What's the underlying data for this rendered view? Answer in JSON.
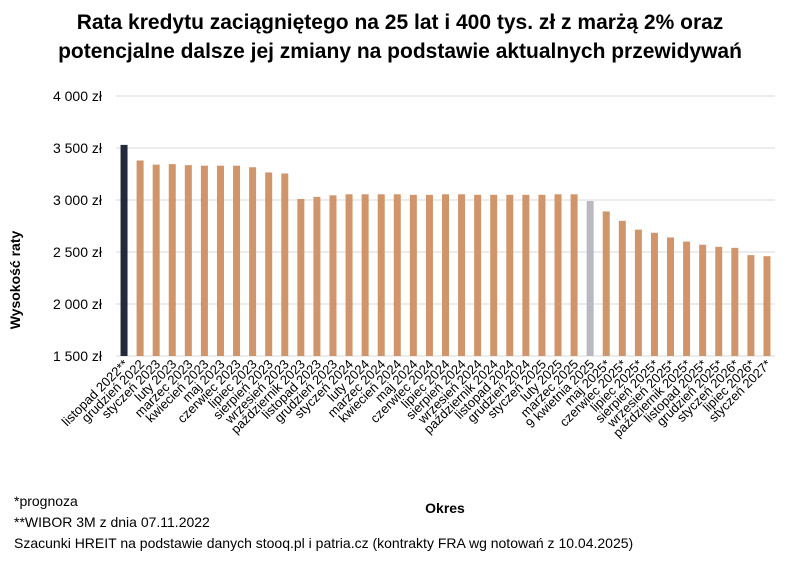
{
  "chart_data": {
    "type": "bar",
    "title_lines": [
      "Rata kredytu zaciągniętego na 25 lat i 400 tys. zł z marżą 2% oraz",
      "potencjalne dalsze jej zmiany na podstawie aktualnych przewidywań"
    ],
    "xlabel": "Okres",
    "ylabel": "Wysokość raty",
    "ylim": [
      1500,
      4000
    ],
    "yticks": [
      1500,
      2000,
      2500,
      3000,
      3500,
      4000
    ],
    "ytick_labels": [
      "1 500 zł",
      "2 000 zł",
      "2 500 zł",
      "3 000 zł",
      "3 500 zł",
      "4 000 zł"
    ],
    "grid": true,
    "legend": "none",
    "categories": [
      "listopad 2022**",
      "grudzień 2022",
      "styczeń 2023",
      "luty 2023",
      "marzec 2023",
      "kwiecień 2023",
      "maj 2023",
      "czerwiec 2023",
      "lipiec 2023",
      "sierpień 2023",
      "wrzesień 2023",
      "październik 2023",
      "listopad 2023",
      "grudzień 2023",
      "styczeń 2024",
      "luty 2024",
      "marzec 2024",
      "kwiecień 2024",
      "maj 2024",
      "czerwiec 2024",
      "lipiec 2024",
      "sierpień 2024",
      "wrzesień 2024",
      "październik 2024",
      "listopad 2024",
      "grudzień 2024",
      "styczeń 2025",
      "luty 2025",
      "marzec 2025",
      "9 kwietnia 2025",
      "maj 2025*",
      "czerwiec 2025*",
      "lipiec 2025*",
      "sierpień 2025*",
      "wrzesień 2025*",
      "październik 2025*",
      "listopad 2025*",
      "grudzień 2025*",
      "styczeń 2026*",
      "lipiec 2026*",
      "styczeń 2027*"
    ],
    "values": [
      3530,
      3380,
      3340,
      3345,
      3335,
      3330,
      3330,
      3330,
      3315,
      3265,
      3255,
      3010,
      3030,
      3045,
      3055,
      3055,
      3055,
      3055,
      3050,
      3050,
      3055,
      3055,
      3050,
      3050,
      3050,
      3050,
      3050,
      3055,
      3055,
      2990,
      2890,
      2800,
      2715,
      2685,
      2640,
      2600,
      2570,
      2550,
      2540,
      2470,
      2460
    ],
    "bar_colors": [
      "#222a3c",
      "#d0956a",
      "#d0956a",
      "#d0956a",
      "#d0956a",
      "#d0956a",
      "#d0956a",
      "#d0956a",
      "#d0956a",
      "#d0956a",
      "#d0956a",
      "#d0956a",
      "#d0956a",
      "#d0956a",
      "#d0956a",
      "#d0956a",
      "#d0956a",
      "#d0956a",
      "#d0956a",
      "#d0956a",
      "#d0956a",
      "#d0956a",
      "#d0956a",
      "#d0956a",
      "#d0956a",
      "#d0956a",
      "#d0956a",
      "#d0956a",
      "#d0956a",
      "#b9b9c1",
      "#d0956a",
      "#d0956a",
      "#d0956a",
      "#d0956a",
      "#d0956a",
      "#d0956a",
      "#d0956a",
      "#d0956a",
      "#d0956a",
      "#d0956a",
      "#d0956a"
    ]
  },
  "notes": [
    "*prognoza",
    "**WIBOR 3M z dnia 07.11.2022",
    "Szacunki HREIT na podstawie danych stooq.pl i patria.cz (kontrakty FRA wg notowań z 10.04.2025)"
  ],
  "colors": {
    "gridline": "#d9d9d9",
    "axis_text": "#000000"
  }
}
